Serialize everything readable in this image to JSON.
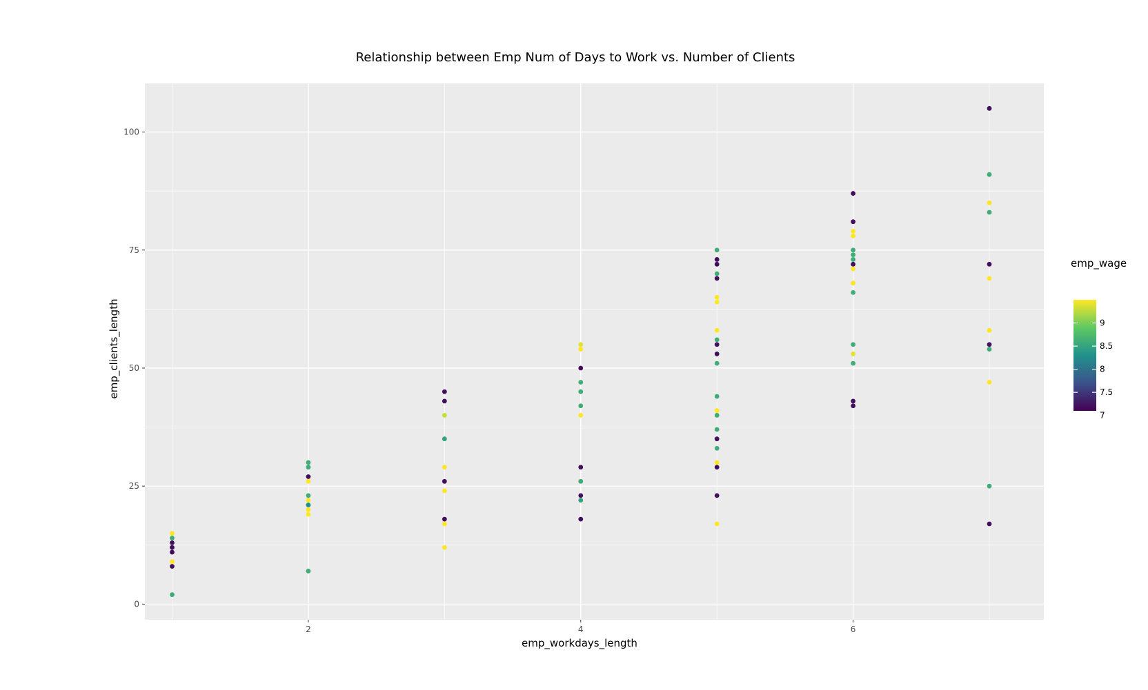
{
  "chart_data": {
    "type": "scatter",
    "title": "Relationship between Emp Num of Days to Work vs. Number of Clients",
    "xlabel": "emp_workdays_length",
    "ylabel": "emp_clients_length",
    "xlim": [
      0.8,
      7.4
    ],
    "ylim": [
      -3.3,
      110.3
    ],
    "xticks": [
      2,
      4,
      6
    ],
    "yticks": [
      0,
      25,
      50,
      75,
      100
    ],
    "grid": true,
    "legend": {
      "title": "emp_wage",
      "placement": "right",
      "type": "colorbar",
      "range": [
        7.1,
        9.5
      ],
      "ticks": [
        9,
        8.5,
        8,
        7.5,
        7
      ],
      "colors": [
        "#440154",
        "#3b528b",
        "#21918c",
        "#5ec962",
        "#fde725"
      ]
    },
    "colors": {
      "panel_bg": "#ebebeb",
      "grid": "#ffffff",
      "low": "#440154",
      "mid": "#21918c",
      "high": "#fde725"
    },
    "points": [
      {
        "x": 1,
        "y": 15,
        "wage": 9.5
      },
      {
        "x": 1,
        "y": 14,
        "wage": 8.6
      },
      {
        "x": 1,
        "y": 13,
        "wage": 7.2
      },
      {
        "x": 1,
        "y": 12,
        "wage": 7.2
      },
      {
        "x": 1,
        "y": 11,
        "wage": 7.2
      },
      {
        "x": 1,
        "y": 9,
        "wage": 9.5
      },
      {
        "x": 1,
        "y": 8,
        "wage": 7.2
      },
      {
        "x": 1,
        "y": 2,
        "wage": 8.6
      },
      {
        "x": 2,
        "y": 30,
        "wage": 8.6
      },
      {
        "x": 2,
        "y": 29,
        "wage": 8.6
      },
      {
        "x": 2,
        "y": 27,
        "wage": 7.2
      },
      {
        "x": 2,
        "y": 26,
        "wage": 9.5
      },
      {
        "x": 2,
        "y": 23,
        "wage": 8.6
      },
      {
        "x": 2,
        "y": 22,
        "wage": 9.5
      },
      {
        "x": 2,
        "y": 21,
        "wage": 8.3
      },
      {
        "x": 2,
        "y": 20,
        "wage": 9.5
      },
      {
        "x": 2,
        "y": 19,
        "wage": 9.5
      },
      {
        "x": 2,
        "y": 7,
        "wage": 8.6
      },
      {
        "x": 3,
        "y": 45,
        "wage": 7.2
      },
      {
        "x": 3,
        "y": 43,
        "wage": 7.2
      },
      {
        "x": 3,
        "y": 40,
        "wage": 9.3
      },
      {
        "x": 3,
        "y": 35,
        "wage": 8.5
      },
      {
        "x": 3,
        "y": 29,
        "wage": 9.5
      },
      {
        "x": 3,
        "y": 26,
        "wage": 7.2
      },
      {
        "x": 3,
        "y": 24,
        "wage": 9.5
      },
      {
        "x": 3,
        "y": 18,
        "wage": 7.2
      },
      {
        "x": 3,
        "y": 17,
        "wage": 9.5
      },
      {
        "x": 3,
        "y": 12,
        "wage": 9.5
      },
      {
        "x": 4,
        "y": 55,
        "wage": 9.4
      },
      {
        "x": 4,
        "y": 54,
        "wage": 9.5
      },
      {
        "x": 4,
        "y": 50,
        "wage": 7.2
      },
      {
        "x": 4,
        "y": 47,
        "wage": 8.6
      },
      {
        "x": 4,
        "y": 45,
        "wage": 8.6
      },
      {
        "x": 4,
        "y": 42,
        "wage": 8.6
      },
      {
        "x": 4,
        "y": 40,
        "wage": 9.5
      },
      {
        "x": 4,
        "y": 29,
        "wage": 7.2
      },
      {
        "x": 4,
        "y": 26,
        "wage": 8.6
      },
      {
        "x": 4,
        "y": 23,
        "wage": 7.2
      },
      {
        "x": 4,
        "y": 22,
        "wage": 8.5
      },
      {
        "x": 4,
        "y": 18,
        "wage": 7.2
      },
      {
        "x": 5,
        "y": 75,
        "wage": 8.6
      },
      {
        "x": 5,
        "y": 73,
        "wage": 7.2
      },
      {
        "x": 5,
        "y": 72,
        "wage": 7.2
      },
      {
        "x": 5,
        "y": 70,
        "wage": 8.6
      },
      {
        "x": 5,
        "y": 69,
        "wage": 7.2
      },
      {
        "x": 5,
        "y": 65,
        "wage": 9.5
      },
      {
        "x": 5,
        "y": 64,
        "wage": 9.5
      },
      {
        "x": 5,
        "y": 58,
        "wage": 9.5
      },
      {
        "x": 5,
        "y": 56,
        "wage": 8.6
      },
      {
        "x": 5,
        "y": 55,
        "wage": 7.2
      },
      {
        "x": 5,
        "y": 53,
        "wage": 7.2
      },
      {
        "x": 5,
        "y": 51,
        "wage": 8.6
      },
      {
        "x": 5,
        "y": 44,
        "wage": 8.6
      },
      {
        "x": 5,
        "y": 41,
        "wage": 9.5
      },
      {
        "x": 5,
        "y": 40,
        "wage": 8.6
      },
      {
        "x": 5,
        "y": 37,
        "wage": 8.6
      },
      {
        "x": 5,
        "y": 35,
        "wage": 7.2
      },
      {
        "x": 5,
        "y": 33,
        "wage": 8.6
      },
      {
        "x": 5,
        "y": 30,
        "wage": 9.5
      },
      {
        "x": 5,
        "y": 29,
        "wage": 7.2
      },
      {
        "x": 5,
        "y": 23,
        "wage": 7.2
      },
      {
        "x": 5,
        "y": 17,
        "wage": 9.5
      },
      {
        "x": 6,
        "y": 87,
        "wage": 7.2
      },
      {
        "x": 6,
        "y": 81,
        "wage": 7.2
      },
      {
        "x": 6,
        "y": 79,
        "wage": 9.5
      },
      {
        "x": 6,
        "y": 78,
        "wage": 9.5
      },
      {
        "x": 6,
        "y": 75,
        "wage": 8.6
      },
      {
        "x": 6,
        "y": 74,
        "wage": 8.6
      },
      {
        "x": 6,
        "y": 73,
        "wage": 8.6
      },
      {
        "x": 6,
        "y": 72,
        "wage": 7.2
      },
      {
        "x": 6,
        "y": 71,
        "wage": 9.5
      },
      {
        "x": 6,
        "y": 68,
        "wage": 9.5
      },
      {
        "x": 6,
        "y": 66,
        "wage": 8.6
      },
      {
        "x": 6,
        "y": 55,
        "wage": 8.6
      },
      {
        "x": 6,
        "y": 53,
        "wage": 9.4
      },
      {
        "x": 6,
        "y": 51,
        "wage": 8.6
      },
      {
        "x": 6,
        "y": 43,
        "wage": 7.2
      },
      {
        "x": 6,
        "y": 42,
        "wage": 7.2
      },
      {
        "x": 7,
        "y": 105,
        "wage": 7.2
      },
      {
        "x": 7,
        "y": 91,
        "wage": 8.6
      },
      {
        "x": 7,
        "y": 85,
        "wage": 9.5
      },
      {
        "x": 7,
        "y": 83,
        "wage": 8.6
      },
      {
        "x": 7,
        "y": 72,
        "wage": 7.2
      },
      {
        "x": 7,
        "y": 69,
        "wage": 9.5
      },
      {
        "x": 7,
        "y": 58,
        "wage": 9.5
      },
      {
        "x": 7,
        "y": 55,
        "wage": 7.2
      },
      {
        "x": 7,
        "y": 54,
        "wage": 8.6
      },
      {
        "x": 7,
        "y": 47,
        "wage": 9.5
      },
      {
        "x": 7,
        "y": 25,
        "wage": 8.6
      },
      {
        "x": 7,
        "y": 17,
        "wage": 7.2
      }
    ]
  }
}
